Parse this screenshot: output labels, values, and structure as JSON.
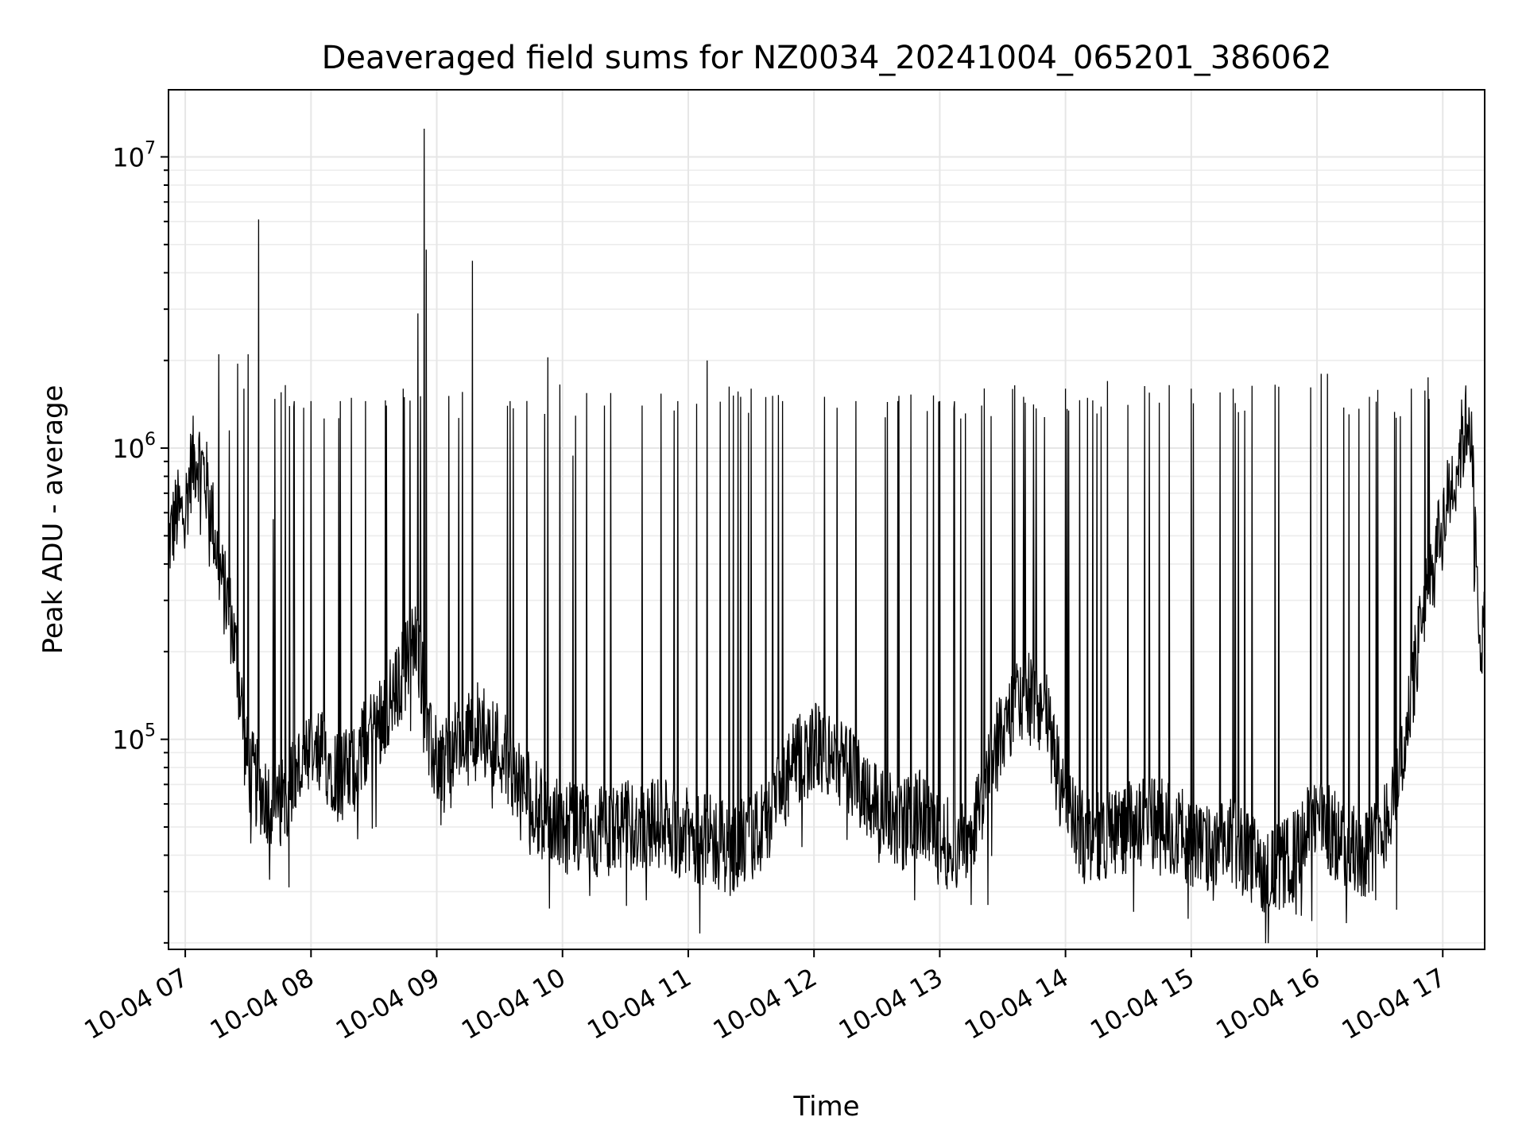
{
  "chart_data": {
    "type": "line",
    "title": "Deaveraged field sums for NZ0034_20241004_065201_386062",
    "xlabel": "Time",
    "ylabel": "Peak ADU - average",
    "y_scale": "log",
    "grid": "on (major and minor)",
    "legend": "none",
    "line_color": "#000000",
    "xlim": [
      "2024-10-04 06:52",
      "2024-10-04 17:20"
    ],
    "ylim": [
      19000,
      17000000
    ],
    "x_ticks": [
      "10-04 07",
      "10-04 08",
      "10-04 09",
      "10-04 10",
      "10-04 11",
      "10-04 12",
      "10-04 13",
      "10-04 14",
      "10-04 15",
      "10-04 16",
      "10-04 17"
    ],
    "y_ticks": [
      {
        "value": 100000,
        "base": "10",
        "exp": "5"
      },
      {
        "value": 1000000,
        "base": "10",
        "exp": "6"
      },
      {
        "value": 10000000,
        "base": "10",
        "exp": "7"
      }
    ],
    "series": [
      {
        "x": [
          "06:52",
          "06:54",
          "06:56",
          "06:58",
          "07:00",
          "07:03",
          "07:06",
          "07:09",
          "07:12",
          "07:15",
          "07:18",
          "07:21",
          "07:24",
          "07:27",
          "07:28",
          "07:30",
          "07:35",
          "07:40",
          "07:45",
          "07:50",
          "07:55",
          "08:00",
          "08:05",
          "08:10",
          "08:15",
          "08:20",
          "08:25",
          "08:30",
          "08:35",
          "08:40",
          "08:45",
          "08:50",
          "08:52",
          "08:54",
          "08:56",
          "09:00",
          "09:05",
          "09:10",
          "09:15",
          "09:18",
          "09:20",
          "09:30",
          "09:40",
          "09:50",
          "10:00",
          "10:15",
          "10:30",
          "10:45",
          "11:00",
          "11:05",
          "11:10",
          "11:20",
          "11:30",
          "11:40",
          "11:50",
          "12:00",
          "12:10",
          "12:20",
          "12:30",
          "12:40",
          "12:50",
          "13:00",
          "13:10",
          "13:20",
          "13:30",
          "13:40",
          "13:50",
          "14:00",
          "14:10",
          "14:20",
          "14:30",
          "14:40",
          "14:50",
          "15:00",
          "15:10",
          "15:20",
          "15:30",
          "15:40",
          "15:50",
          "16:00",
          "16:10",
          "16:20",
          "16:30",
          "16:40",
          "16:50",
          "17:00",
          "17:05",
          "17:10",
          "17:13",
          "17:15",
          "17:17",
          "17:20"
        ],
        "base": [
          470000,
          530000,
          600000,
          580000,
          620000,
          880000,
          950000,
          820000,
          650000,
          450000,
          330000,
          280000,
          200000,
          130000,
          100000,
          80000,
          68000,
          62000,
          58000,
          70000,
          80000,
          85000,
          88000,
          82000,
          75000,
          78000,
          95000,
          110000,
          125000,
          140000,
          180000,
          220000,
          190000,
          140000,
          95000,
          85000,
          88000,
          95000,
          100000,
          115000,
          110000,
          95000,
          70000,
          55000,
          50000,
          48000,
          50000,
          52000,
          47000,
          46000,
          45000,
          42000,
          45000,
          55000,
          80000,
          95000,
          85000,
          75000,
          60000,
          50000,
          55000,
          45000,
          42000,
          60000,
          110000,
          140000,
          130000,
          55000,
          45000,
          48000,
          50000,
          52000,
          50000,
          45000,
          40000,
          45000,
          38000,
          35000,
          40000,
          55000,
          45000,
          40000,
          45000,
          80000,
          250000,
          550000,
          800000,
          1100000,
          1350000,
          600000,
          250000,
          220000
        ],
        "peaks": [
          {
            "x": "07:16",
            "y": 2100000
          },
          {
            "x": "07:21",
            "y": 1150000
          },
          {
            "x": "07:25",
            "y": 1950000
          },
          {
            "x": "07:28",
            "y": 1600000
          },
          {
            "x": "07:30",
            "y": 2100000
          },
          {
            "x": "07:35",
            "y": 6100000
          },
          {
            "x": "07:42",
            "y": 570000
          },
          {
            "x": "07:52",
            "y": 1450000
          },
          {
            "x": "08:00",
            "y": 1450000
          },
          {
            "x": "08:14",
            "y": 1450000
          },
          {
            "x": "08:26",
            "y": 1450000
          },
          {
            "x": "08:36",
            "y": 1400000
          },
          {
            "x": "08:44",
            "y": 1600000
          },
          {
            "x": "08:51",
            "y": 2900000
          },
          {
            "x": "08:54",
            "y": 12500000
          },
          {
            "x": "08:55",
            "y": 4800000
          },
          {
            "x": "09:17",
            "y": 4400000
          },
          {
            "x": "09:35",
            "y": 1450000
          },
          {
            "x": "09:53",
            "y": 2050000
          },
          {
            "x": "10:05",
            "y": 1450000
          },
          {
            "x": "10:20",
            "y": 1400000
          },
          {
            "x": "10:38",
            "y": 1400000
          },
          {
            "x": "10:55",
            "y": 1450000
          },
          {
            "x": "11:09",
            "y": 2000000
          },
          {
            "x": "11:25",
            "y": 1500000
          },
          {
            "x": "11:30",
            "y": 1600000
          },
          {
            "x": "11:45",
            "y": 1450000
          },
          {
            "x": "12:05",
            "y": 1500000
          },
          {
            "x": "12:20",
            "y": 1450000
          },
          {
            "x": "12:40",
            "y": 1450000
          },
          {
            "x": "13:00",
            "y": 1450000
          },
          {
            "x": "13:20",
            "y": 1400000
          },
          {
            "x": "13:40",
            "y": 1500000
          },
          {
            "x": "14:00",
            "y": 1600000
          },
          {
            "x": "14:20",
            "y": 1700000
          },
          {
            "x": "14:40",
            "y": 1550000
          },
          {
            "x": "15:00",
            "y": 1600000
          },
          {
            "x": "15:20",
            "y": 1600000
          },
          {
            "x": "15:40",
            "y": 1650000
          },
          {
            "x": "16:02",
            "y": 1800000
          },
          {
            "x": "16:05",
            "y": 1800000
          },
          {
            "x": "16:25",
            "y": 1500000
          },
          {
            "x": "16:45",
            "y": 1600000
          },
          {
            "x": "16:53",
            "y": 1750000
          }
        ],
        "dips": [
          {
            "x": "08:00",
            "y": 39000
          },
          {
            "x": "08:31",
            "y": 50000
          },
          {
            "x": "09:40",
            "y": 45000
          },
          {
            "x": "10:13",
            "y": 29000
          },
          {
            "x": "10:40",
            "y": 28000
          },
          {
            "x": "11:20",
            "y": 29000
          },
          {
            "x": "12:48",
            "y": 28000
          },
          {
            "x": "13:15",
            "y": 27000
          },
          {
            "x": "13:23",
            "y": 27000
          },
          {
            "x": "15:00",
            "y": 26000
          },
          {
            "x": "15:42",
            "y": 26000
          },
          {
            "x": "15:50",
            "y": 25000
          },
          {
            "x": "16:05",
            "y": 27000
          },
          {
            "x": "16:28",
            "y": 28000
          },
          {
            "x": "16:38",
            "y": 26000
          }
        ]
      }
    ]
  }
}
